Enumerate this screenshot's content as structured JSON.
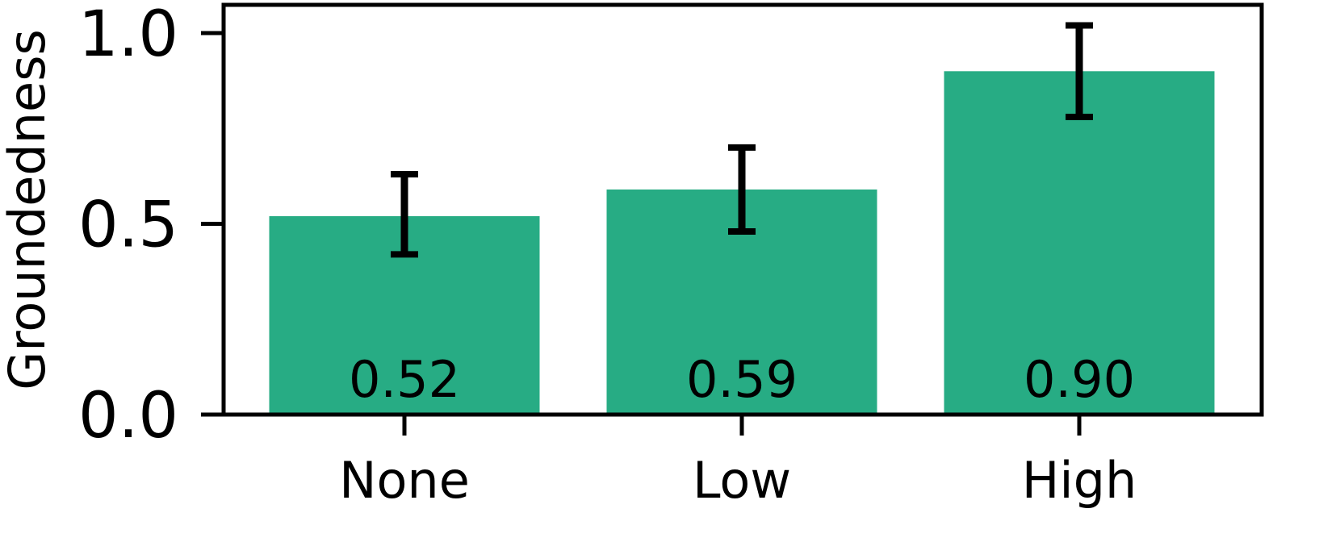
{
  "chart_data": {
    "type": "bar",
    "categories": [
      "None",
      "Low",
      "High"
    ],
    "values": [
      0.52,
      0.59,
      0.9
    ],
    "value_labels": [
      "0.52",
      "0.59",
      "0.90"
    ],
    "error_bars": [
      {
        "low": 0.42,
        "high": 0.63
      },
      {
        "low": 0.48,
        "high": 0.7
      },
      {
        "low": 0.78,
        "high": 1.02
      }
    ],
    "ylabel": "Groundedness",
    "xlabel": "",
    "ylim": [
      0.0,
      1.0
    ],
    "yticks": [
      0.0,
      0.5,
      1.0
    ],
    "ytick_labels": [
      "0.0",
      "0.5",
      "1.0"
    ],
    "grid": false,
    "bar_color": "#27ac84"
  }
}
